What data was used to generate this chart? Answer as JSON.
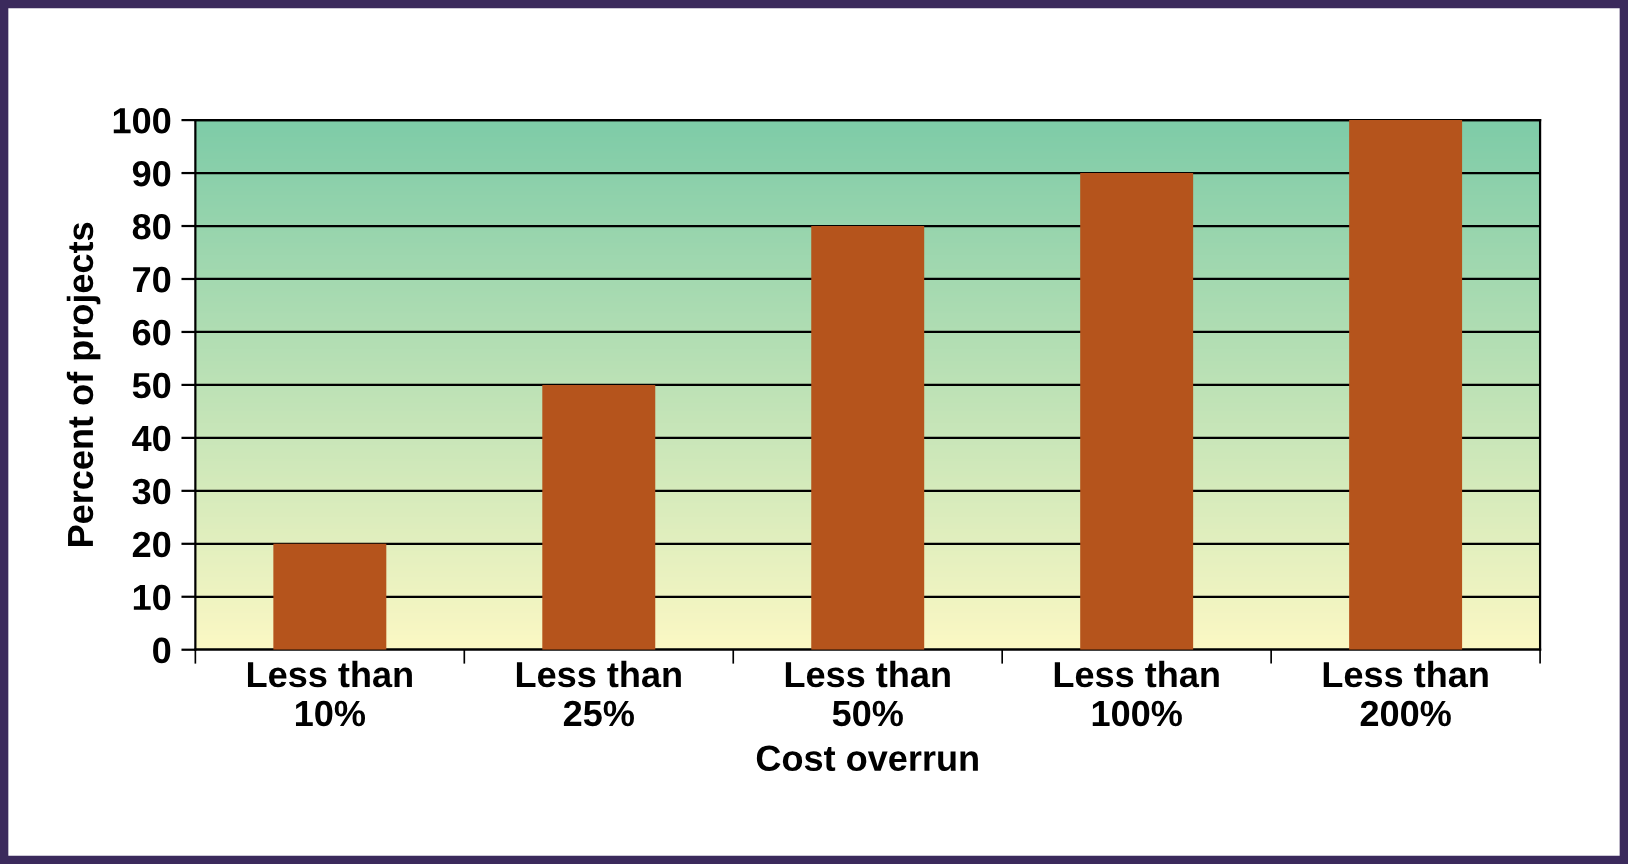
{
  "chart_data": {
    "type": "bar",
    "xlabel": "Cost overrun",
    "ylabel": "Percent of projects",
    "categories": [
      "Less than\n10%",
      "Less than\n25%",
      "Less than\n50%",
      "Less than\n100%",
      "Less than\n200%"
    ],
    "values": [
      20,
      50,
      80,
      90,
      100
    ],
    "color": "#b5541c",
    "ylim": [
      0,
      100
    ],
    "yticks": [
      0,
      10,
      20,
      30,
      40,
      50,
      60,
      70,
      80,
      90,
      100
    ],
    "grid": "y"
  }
}
